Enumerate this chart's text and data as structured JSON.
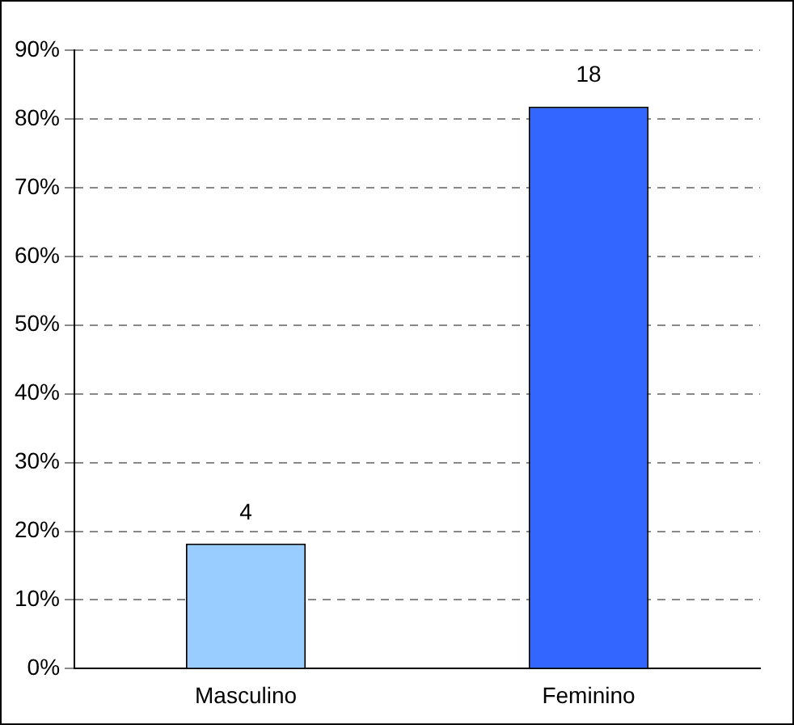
{
  "chart_data": {
    "type": "bar",
    "categories": [
      "Masculino",
      "Feminino"
    ],
    "colors": [
      "#99ccff",
      "#3366ff"
    ],
    "values": [
      18.2,
      81.8
    ],
    "annotations": [
      {
        "text": "4",
        "x": "Masculino",
        "y": 18.2
      },
      {
        "text": "18",
        "x": "Feminino",
        "y": 81.8
      }
    ],
    "ylim": [
      0,
      90
    ],
    "yticks": [
      {
        "value": 0,
        "label": "0%"
      },
      {
        "value": 10,
        "label": "10%"
      },
      {
        "value": 20,
        "label": "20%"
      },
      {
        "value": 30,
        "label": "30%"
      },
      {
        "value": 40,
        "label": "40%"
      },
      {
        "value": 50,
        "label": "50%"
      },
      {
        "value": 60,
        "label": "60%"
      },
      {
        "value": 70,
        "label": "70%"
      },
      {
        "value": 80,
        "label": "80%"
      },
      {
        "value": 90,
        "label": "90%"
      }
    ],
    "grid": "y",
    "line_style": "dashed",
    "legend": false
  }
}
